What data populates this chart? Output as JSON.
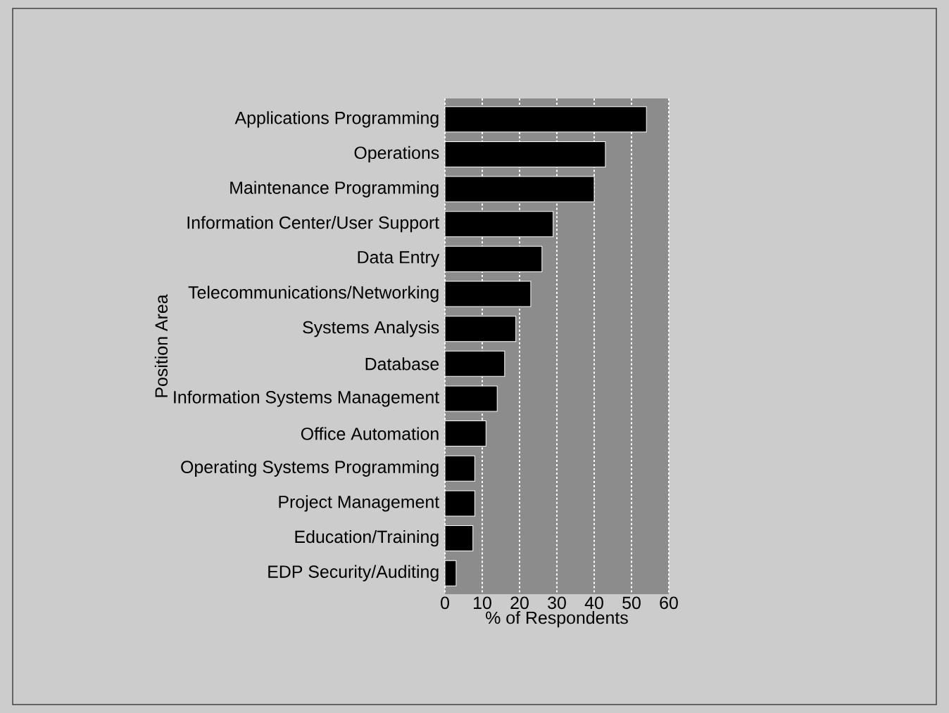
{
  "chart_data": {
    "type": "bar",
    "orientation": "horizontal",
    "xlabel": "% of Respondents",
    "ylabel": "Position Area",
    "categories": [
      "Applications Programming",
      "Operations",
      "Maintenance Programming",
      "Information Center/User Support",
      "Data Entry",
      "Telecommunications/Networking",
      "Systems Analysis",
      "Database",
      "Information Systems Management",
      "Office Automation",
      "Operating Systems Programming",
      "Project Management",
      "Education/Training",
      "EDP Security/Auditing"
    ],
    "values": [
      54,
      43,
      40,
      29,
      26,
      23,
      19,
      16,
      14,
      11,
      8,
      8,
      7.5,
      3
    ],
    "color": "#000000",
    "xlim": [
      0,
      60
    ],
    "xticks": [
      0,
      10,
      20,
      30,
      40,
      50,
      60
    ],
    "grid": "x"
  }
}
